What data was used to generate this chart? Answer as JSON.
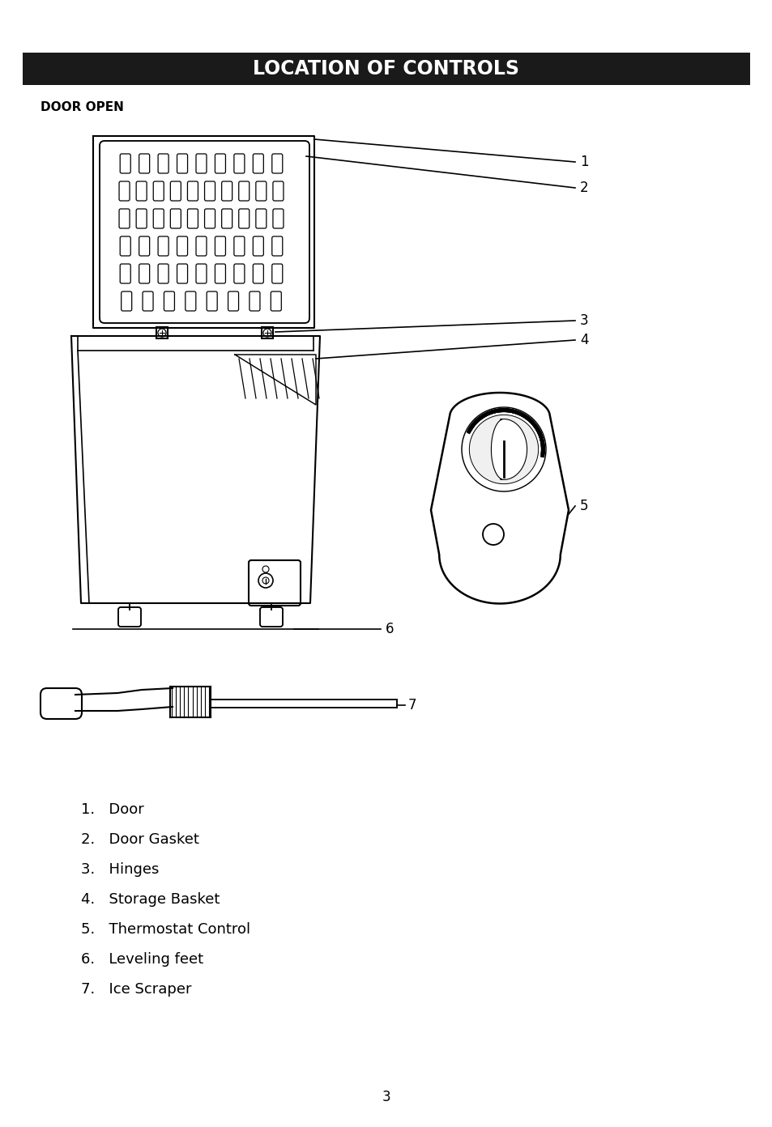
{
  "title": "LOCATION OF CONTROLS",
  "subtitle": "DOOR OPEN",
  "background_color": "#ffffff",
  "title_bg_color": "#1a1a1a",
  "title_text_color": "#ffffff",
  "line_color": "#000000",
  "items": [
    "1.   Door",
    "2.   Door Gasket",
    "3.   Hinges",
    "4.   Storage Basket",
    "5.   Thermostat Control",
    "6.   Leveling feet",
    "7.   Ice Scraper"
  ],
  "page_number": "3"
}
